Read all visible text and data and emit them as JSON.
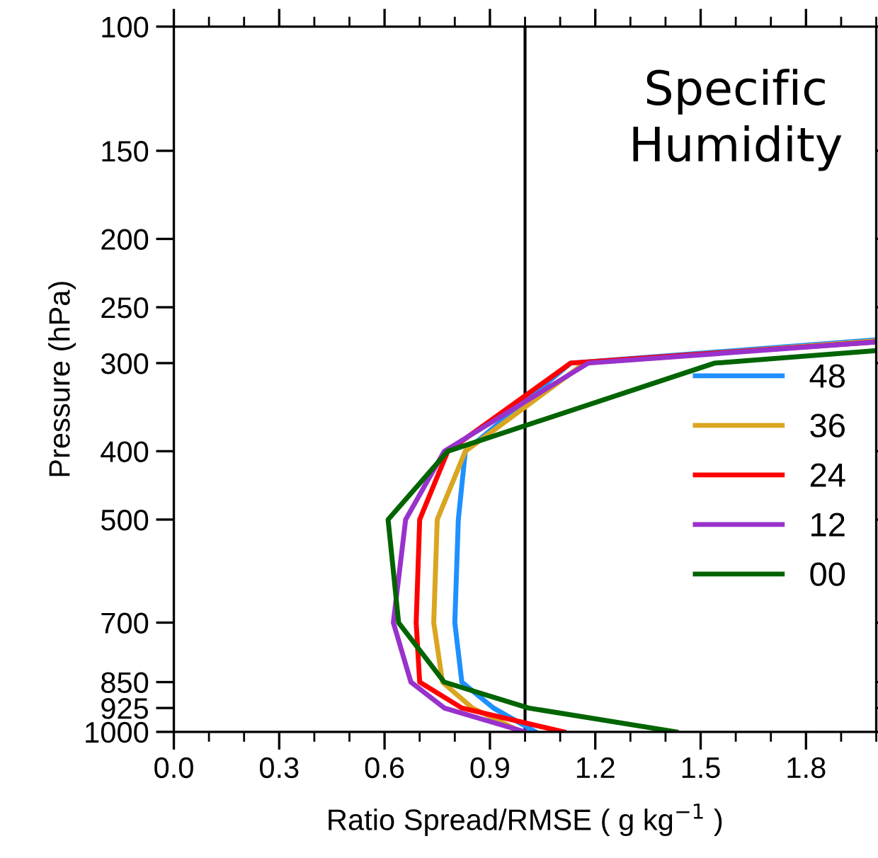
{
  "chart_data": {
    "type": "line",
    "title": "Specific\nHumidity",
    "xlabel": "Ratio Spread/RMSE ( g kg$^{−1}$ )",
    "ylabel": "Pressure (hPa)",
    "log": "y",
    "xlim": [
      0,
      2.0
    ],
    "ylim": [
      1000,
      100
    ],
    "xticks": [
      {
        "value": 0,
        "label": "0.0"
      },
      {
        "value": 0.3,
        "label": "0.3"
      },
      {
        "value": 0.6,
        "label": "0.6"
      },
      {
        "value": 0.9,
        "label": "0.9"
      },
      {
        "value": 1.2,
        "label": "1.2"
      },
      {
        "value": 1.5,
        "label": "1.5"
      },
      {
        "value": 1.8,
        "label": "1.8"
      }
    ],
    "yticks": [
      100,
      150,
      200,
      250,
      300,
      400,
      500,
      700,
      850,
      925,
      1000
    ],
    "grid": false,
    "legend": "right",
    "marker": "none",
    "line_style": "solid",
    "ref_lines": [
      {
        "axis": "x",
        "value": 1.0,
        "color": "#000000"
      }
    ],
    "series": [
      {
        "name": "48",
        "color": "#1e90ff",
        "x": [
          1.03,
          0.91,
          0.82,
          0.8,
          0.81,
          0.83,
          1.13,
          2.0
        ],
        "values": [
          1000,
          925,
          850,
          700,
          500,
          400,
          300,
          278
        ]
      },
      {
        "name": "36",
        "color": "#daa520",
        "x": [
          0.99,
          0.85,
          0.765,
          0.74,
          0.75,
          0.83,
          1.17,
          2.0
        ],
        "values": [
          1000,
          925,
          850,
          700,
          500,
          400,
          300,
          279
        ]
      },
      {
        "name": "24",
        "color": "#ff0000",
        "x": [
          1.11,
          0.82,
          0.7,
          0.69,
          0.7,
          0.78,
          1.13,
          2.0
        ],
        "values": [
          1000,
          925,
          850,
          700,
          500,
          400,
          300,
          280
        ]
      },
      {
        "name": "12",
        "color": "#9932cc",
        "x": [
          1.0,
          0.77,
          0.675,
          0.625,
          0.66,
          0.77,
          1.18,
          2.0
        ],
        "values": [
          1000,
          925,
          850,
          700,
          500,
          400,
          300,
          280
        ]
      },
      {
        "name": "00",
        "color": "#006400",
        "x": [
          1.43,
          1.01,
          0.77,
          0.64,
          0.61,
          0.78,
          1.54,
          2.0
        ],
        "values": [
          1000,
          925,
          850,
          700,
          500,
          400,
          300,
          288
        ]
      }
    ]
  }
}
